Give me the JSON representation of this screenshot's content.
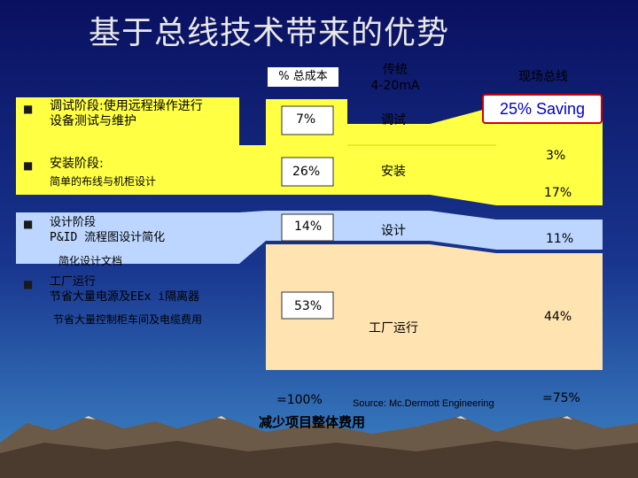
{
  "slide": {
    "title": "基于总线技术带来的优势",
    "colors": {
      "yellow": "#ffff44",
      "light_blue": "#bcd6ff",
      "peach": "#ffe3b0",
      "background_top": "#0a1060",
      "background_bottom": "#2a6fb0"
    }
  },
  "headers": {
    "cost_pct": "% 总成本",
    "traditional": "传统\n4-20mA",
    "fieldbus": "现场总线"
  },
  "saving_badge": "25% Saving",
  "bullets": [
    {
      "icon": "square-bullet-icon",
      "text": "调试阶段:使用远程操作进行\n设备测试与维护"
    },
    {
      "icon": "square-bullet-icon",
      "text": "安装阶段:",
      "sub": "简单的布线与机柜设计"
    },
    {
      "icon": "square-bullet-icon",
      "text": "设计阶段\nP&ID 流程图设计简化",
      "sub": "简化设计文档"
    },
    {
      "icon": "square-bullet-icon",
      "text": "工厂运行\n节省大量电源及EEx i隔离器",
      "sub": "节省大量控制柜车间及电缆费用"
    }
  ],
  "rows": [
    {
      "pct": "7%",
      "label": "调试",
      "fieldbus_pct": "3%"
    },
    {
      "pct": "26%",
      "label": "安装",
      "fieldbus_pct": "17%"
    },
    {
      "pct": "14%",
      "label": "设计",
      "fieldbus_pct": "11%"
    },
    {
      "pct": "53%",
      "label": "工厂运行",
      "fieldbus_pct": "44%"
    }
  ],
  "totals": {
    "traditional": "=100%",
    "fieldbus": "=75%"
  },
  "source": "Source: Mc.Dermott Engineering",
  "footer": "减少项目整体费用"
}
